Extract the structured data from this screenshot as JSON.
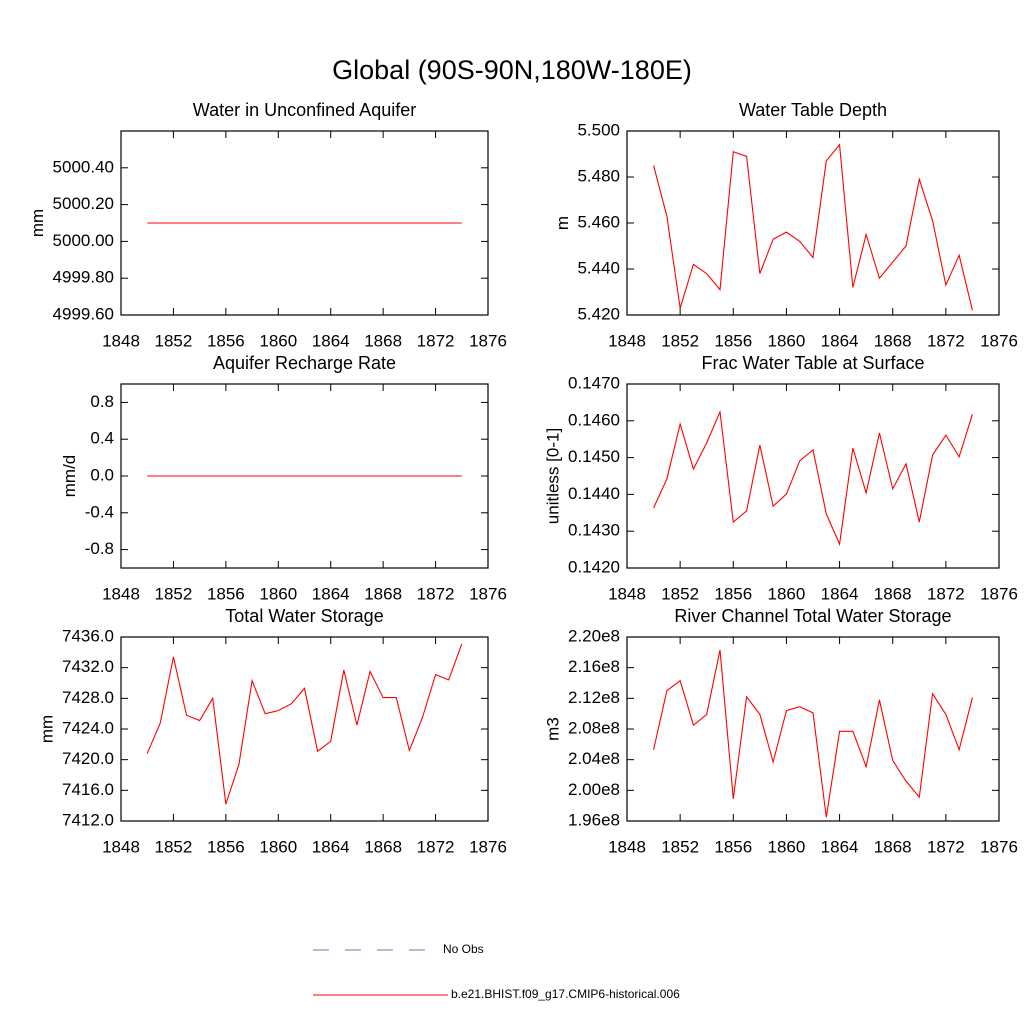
{
  "title": "Global (90S-90N,180W-180E)",
  "legend": [
    {
      "name": "No Obs",
      "color": "#7070b8",
      "dash": true
    },
    {
      "name": "b.e21.BHIST.f09_g17.CMIP6-historical.006",
      "color": "#ff0000",
      "dash": false
    }
  ],
  "chart_data": [
    {
      "type": "line",
      "title": "Water in Unconfined Aquifer",
      "y_label": "mm",
      "color": "#ff0000",
      "x": [
        1850,
        1851,
        1852,
        1853,
        1854,
        1855,
        1856,
        1857,
        1858,
        1859,
        1860,
        1861,
        1862,
        1863,
        1864,
        1865,
        1866,
        1867,
        1868,
        1869,
        1870,
        1871,
        1872,
        1873,
        1874
      ],
      "values": [
        5000.1,
        5000.1,
        5000.1,
        5000.1,
        5000.1,
        5000.1,
        5000.1,
        5000.1,
        5000.1,
        5000.1,
        5000.1,
        5000.1,
        5000.1,
        5000.1,
        5000.1,
        5000.1,
        5000.1,
        5000.1,
        5000.1,
        5000.1,
        5000.1,
        5000.1,
        5000.1,
        5000.1,
        5000.1
      ],
      "xlim": [
        1848,
        1876
      ],
      "xticks": [
        1848,
        1852,
        1856,
        1860,
        1864,
        1868,
        1872,
        1876
      ],
      "ylim": [
        4999.6,
        5000.6
      ],
      "yticks": [
        {
          "value": 4999.6,
          "label": "4999.60"
        },
        {
          "value": 4999.8,
          "label": "4999.80"
        },
        {
          "value": 5000.0,
          "label": "5000.00"
        },
        {
          "value": 5000.2,
          "label": "5000.20"
        },
        {
          "value": 5000.4,
          "label": "5000.40"
        }
      ]
    },
    {
      "type": "line",
      "title": "Water Table Depth",
      "y_label": "m",
      "color": "#ff0000",
      "x": [
        1850,
        1851,
        1852,
        1853,
        1854,
        1855,
        1856,
        1857,
        1858,
        1859,
        1860,
        1861,
        1862,
        1863,
        1864,
        1865,
        1866,
        1867,
        1868,
        1869,
        1870,
        1871,
        1872,
        1873,
        1874
      ],
      "values": [
        5.485,
        5.463,
        5.423,
        5.442,
        5.438,
        5.431,
        5.491,
        5.489,
        5.438,
        5.453,
        5.456,
        5.452,
        5.445,
        5.487,
        5.494,
        5.432,
        5.455,
        5.436,
        5.443,
        5.45,
        5.479,
        5.461,
        5.433,
        5.446,
        5.422
      ],
      "xlim": [
        1848,
        1876
      ],
      "xticks": [
        1848,
        1852,
        1856,
        1860,
        1864,
        1868,
        1872,
        1876
      ],
      "ylim": [
        5.42,
        5.5
      ],
      "yticks": [
        {
          "value": 5.42,
          "label": "5.420"
        },
        {
          "value": 5.44,
          "label": "5.440"
        },
        {
          "value": 5.46,
          "label": "5.460"
        },
        {
          "value": 5.48,
          "label": "5.480"
        },
        {
          "value": 5.5,
          "label": "5.500"
        }
      ]
    },
    {
      "type": "line",
      "title": "Aquifer Recharge Rate",
      "y_label": "mm/d",
      "color": "#ff0000",
      "x": [
        1850,
        1851,
        1852,
        1853,
        1854,
        1855,
        1856,
        1857,
        1858,
        1859,
        1860,
        1861,
        1862,
        1863,
        1864,
        1865,
        1866,
        1867,
        1868,
        1869,
        1870,
        1871,
        1872,
        1873,
        1874
      ],
      "values": [
        0,
        0,
        0,
        0,
        0,
        0,
        0,
        0,
        0,
        0,
        0,
        0,
        0,
        0,
        0,
        0,
        0,
        0,
        0,
        0,
        0,
        0,
        0,
        0,
        0
      ],
      "xlim": [
        1848,
        1876
      ],
      "xticks": [
        1848,
        1852,
        1856,
        1860,
        1864,
        1868,
        1872,
        1876
      ],
      "ylim": [
        -1,
        1
      ],
      "yticks": [
        -0.8,
        -0.4,
        {
          "value": 0,
          "label": "0.0"
        },
        0.4,
        0.8
      ]
    },
    {
      "type": "line",
      "title": "Frac Water Table at Surface",
      "y_label": "unitless [0-1]",
      "color": "#ff0000",
      "x": [
        1850,
        1851,
        1852,
        1853,
        1854,
        1855,
        1856,
        1857,
        1858,
        1859,
        1860,
        1861,
        1862,
        1863,
        1864,
        1865,
        1866,
        1867,
        1868,
        1869,
        1870,
        1871,
        1872,
        1873,
        1874
      ],
      "values": [
        0.14363,
        0.14442,
        0.14591,
        0.14469,
        0.1454,
        0.14624,
        0.14325,
        0.14355,
        0.14534,
        0.14368,
        0.14401,
        0.14491,
        0.14521,
        0.14347,
        0.14265,
        0.14526,
        0.14404,
        0.14567,
        0.14415,
        0.14483,
        0.14325,
        0.14507,
        0.14561,
        0.14502,
        0.14618
      ],
      "xlim": [
        1848,
        1876
      ],
      "xticks": [
        1848,
        1852,
        1856,
        1860,
        1864,
        1868,
        1872,
        1876
      ],
      "ylim": [
        0.142,
        0.147
      ],
      "yticks": [
        {
          "value": 0.142,
          "label": "0.1420"
        },
        {
          "value": 0.143,
          "label": "0.1430"
        },
        {
          "value": 0.144,
          "label": "0.1440"
        },
        {
          "value": 0.145,
          "label": "0.1450"
        },
        {
          "value": 0.146,
          "label": "0.1460"
        },
        {
          "value": 0.147,
          "label": "0.1470"
        }
      ]
    },
    {
      "type": "line",
      "title": "Total Water Storage",
      "y_label": "mm",
      "color": "#ff0000",
      "x": [
        1850,
        1851,
        1852,
        1853,
        1854,
        1855,
        1856,
        1857,
        1858,
        1859,
        1860,
        1861,
        1862,
        1863,
        1864,
        1865,
        1866,
        1867,
        1868,
        1869,
        1870,
        1871,
        1872,
        1873,
        1874
      ],
      "values": [
        7420.8,
        7424.8,
        7433.4,
        7425.8,
        7425.1,
        7428.0,
        7414.2,
        7419.4,
        7430.3,
        7426.0,
        7426.4,
        7427.3,
        7429.3,
        7421.1,
        7422.4,
        7431.7,
        7424.5,
        7431.5,
        7428.1,
        7428.1,
        7421.2,
        7425.5,
        7431.1,
        7430.4,
        7435.1
      ],
      "xlim": [
        1848,
        1876
      ],
      "xticks": [
        1848,
        1852,
        1856,
        1860,
        1864,
        1868,
        1872,
        1876
      ],
      "ylim": [
        7412,
        7436
      ],
      "yticks": [
        {
          "value": 7412,
          "label": "7412.0"
        },
        {
          "value": 7416,
          "label": "7416.0"
        },
        {
          "value": 7420,
          "label": "7420.0"
        },
        {
          "value": 7424,
          "label": "7424.0"
        },
        {
          "value": 7428,
          "label": "7428.0"
        },
        {
          "value": 7432,
          "label": "7432.0"
        },
        {
          "value": 7436,
          "label": "7436.0"
        }
      ]
    },
    {
      "type": "line",
      "title": "River Channel Total Water Storage",
      "y_label": "m3",
      "color": "#ff0000",
      "x": [
        1850,
        1851,
        1852,
        1853,
        1854,
        1855,
        1856,
        1857,
        1858,
        1859,
        1860,
        1861,
        1862,
        1863,
        1864,
        1865,
        1866,
        1867,
        1868,
        1869,
        1870,
        1871,
        1872,
        1873,
        1874
      ],
      "values": [
        205300000,
        213000000,
        214300000,
        208500000,
        209900000,
        218300000,
        198900000,
        212200000,
        209900000,
        203700000,
        210400000,
        210900000,
        210100000,
        196500000,
        207700000,
        207700000,
        203100000,
        211800000,
        203900000,
        201200000,
        199100000,
        212600000,
        209900000,
        205300000,
        212100000
      ],
      "xlim": [
        1848,
        1876
      ],
      "xticks": [
        1848,
        1852,
        1856,
        1860,
        1864,
        1868,
        1872,
        1876
      ],
      "ylim": [
        196000000,
        220000000
      ],
      "yticks": [
        {
          "value": 196000000,
          "label": "1.96e8"
        },
        {
          "value": 200000000,
          "label": "2.00e8"
        },
        {
          "value": 204000000,
          "label": "2.04e8"
        },
        {
          "value": 208000000,
          "label": "2.08e8"
        },
        {
          "value": 212000000,
          "label": "2.12e8"
        },
        {
          "value": 216000000,
          "label": "2.16e8"
        },
        {
          "value": 220000000,
          "label": "2.20e8"
        }
      ]
    }
  ]
}
